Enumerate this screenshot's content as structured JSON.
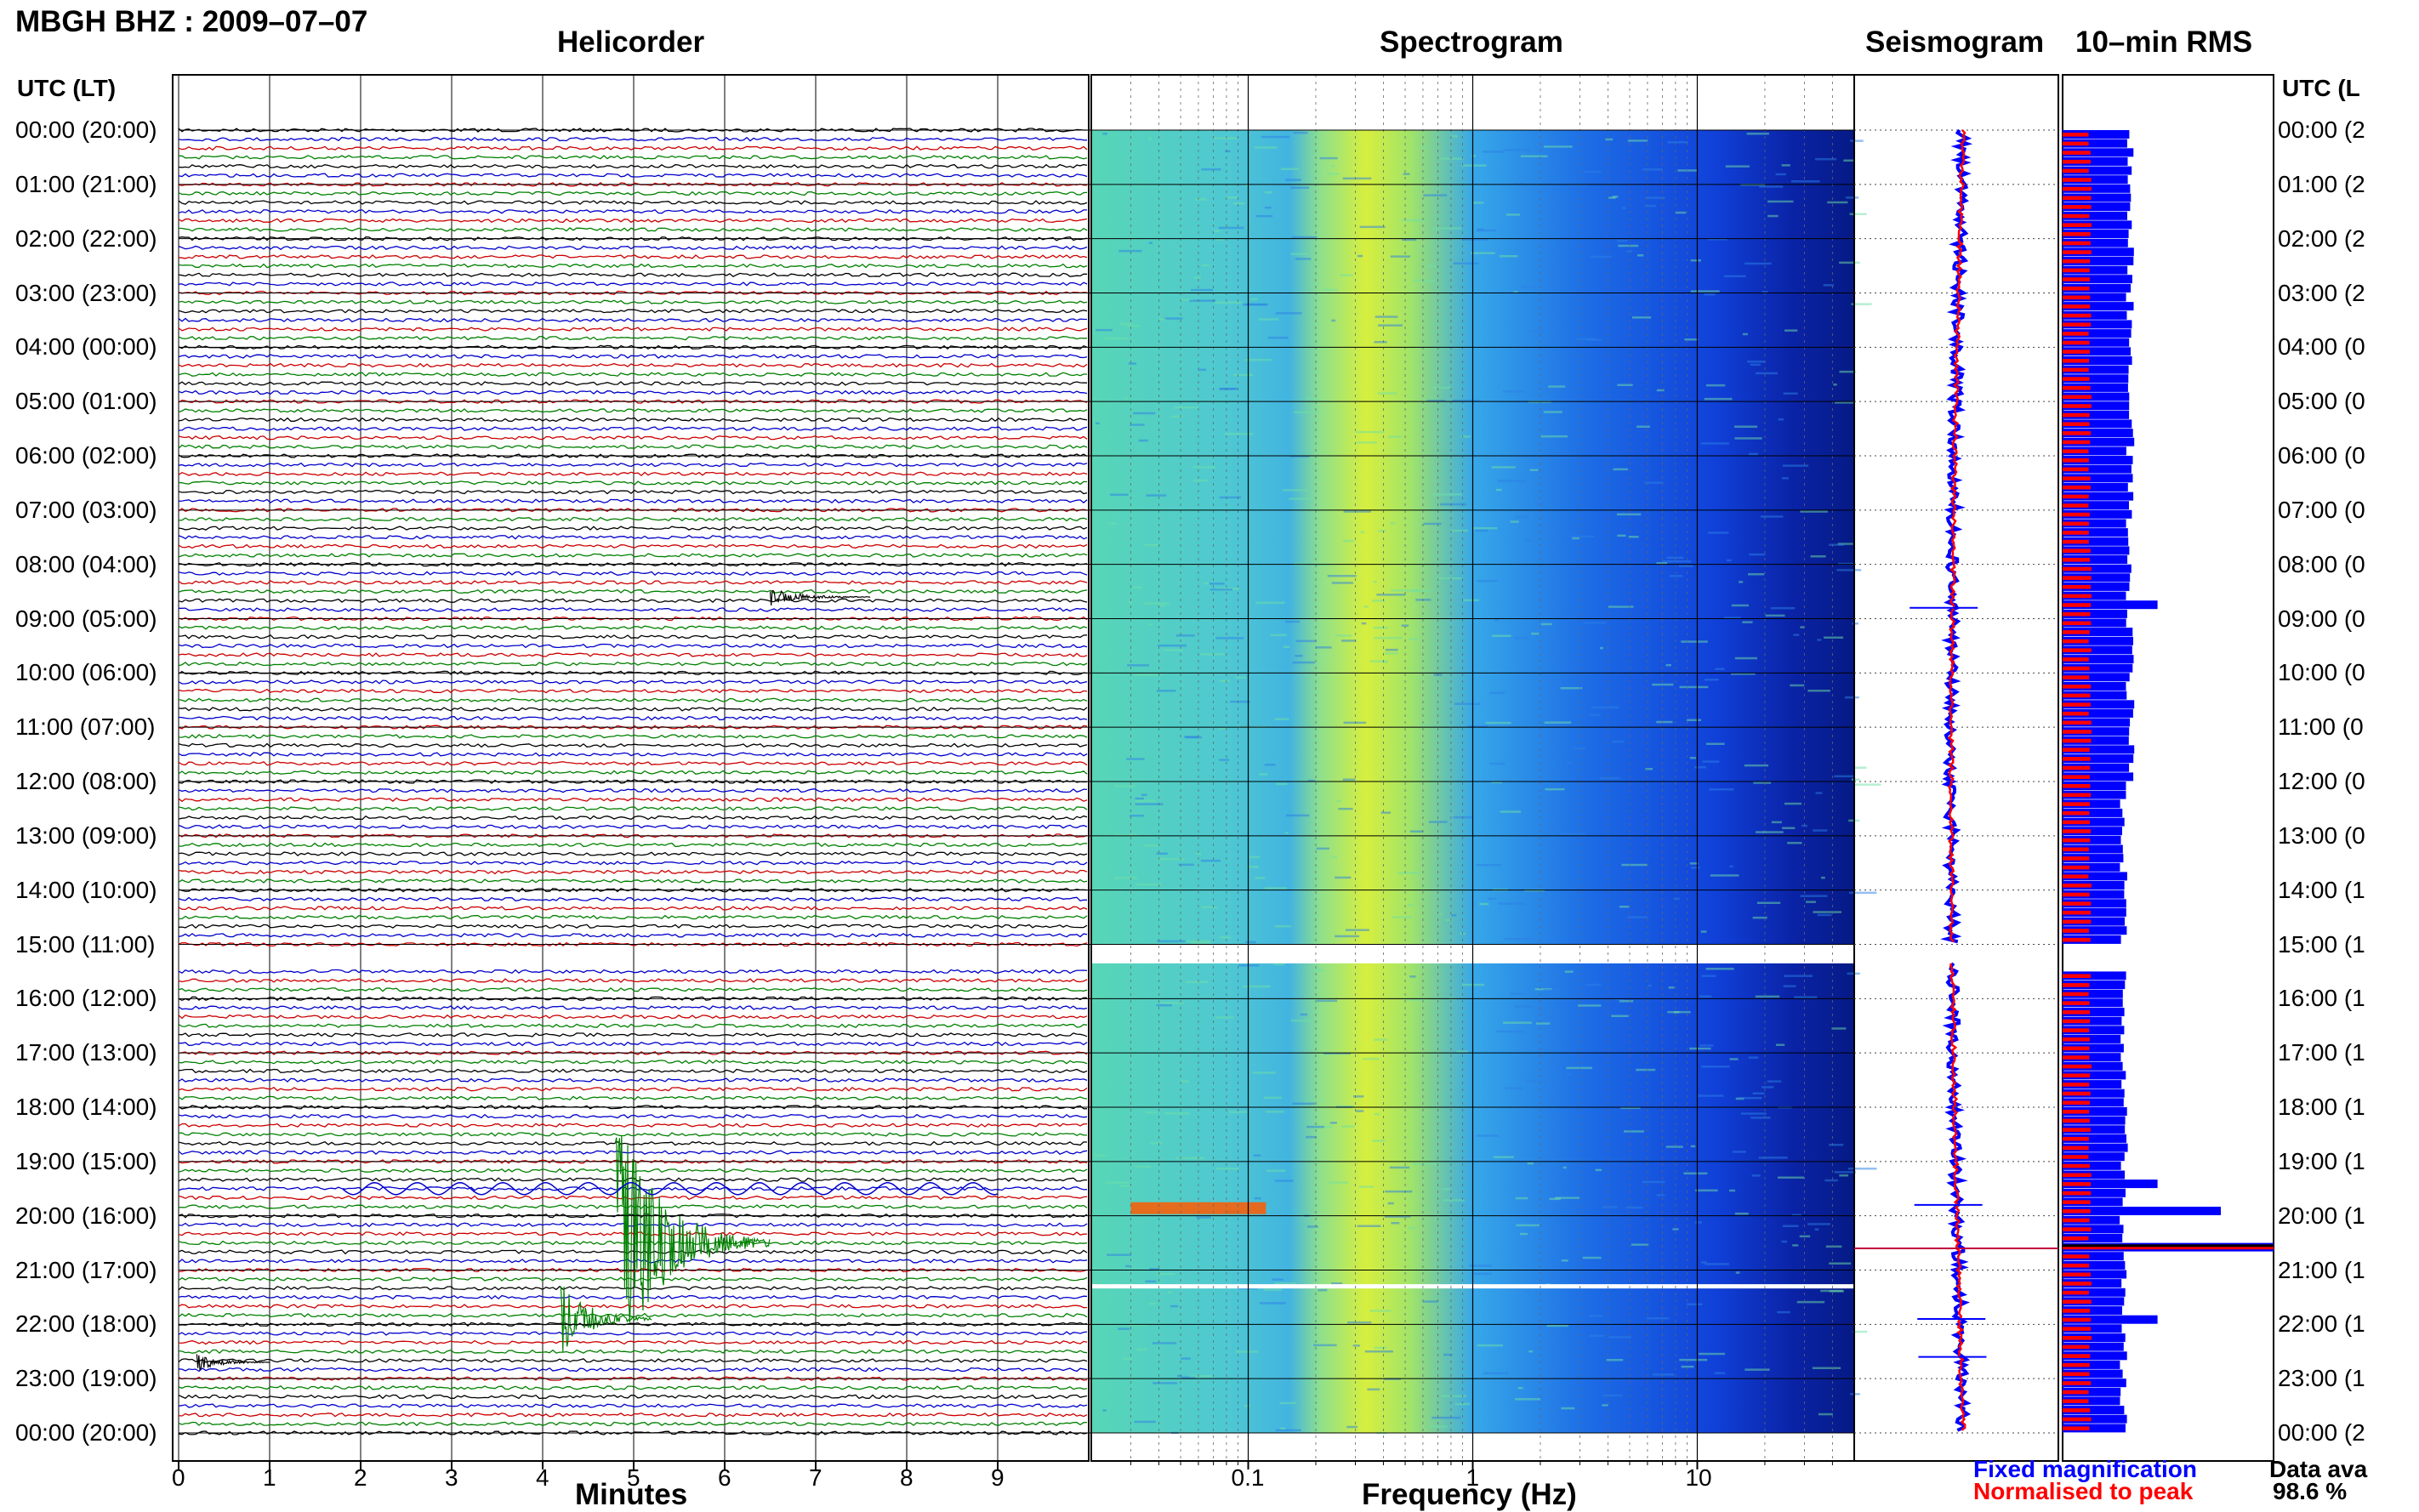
{
  "header": {
    "title": "MBGH BHZ : 2009–07–07",
    "panels": [
      "Helicorder",
      "Spectrogram",
      "Seismogram",
      "10–min RMS"
    ]
  },
  "left_axis_header": "UTC (LT)",
  "right_axis_header": "UTC (L",
  "row_labels": [
    "00:00 (20:00)",
    "01:00 (21:00)",
    "02:00 (22:00)",
    "03:00 (23:00)",
    "04:00 (00:00)",
    "05:00 (01:00)",
    "06:00 (02:00)",
    "07:00 (03:00)",
    "08:00 (04:00)",
    "09:00 (05:00)",
    "10:00 (06:00)",
    "11:00 (07:00)",
    "12:00 (08:00)",
    "13:00 (09:00)",
    "14:00 (10:00)",
    "15:00 (11:00)",
    "16:00 (12:00)",
    "17:00 (13:00)",
    "18:00 (14:00)",
    "19:00 (15:00)",
    "20:00 (16:00)",
    "21:00 (17:00)",
    "22:00 (18:00)",
    "23:00 (19:00)",
    "00:00 (20:00)"
  ],
  "right_row_labels": [
    "00:00 (2",
    "01:00 (2",
    "02:00 (2",
    "03:00 (2",
    "04:00 (0",
    "05:00 (0",
    "06:00 (0",
    "07:00 (0",
    "08:00 (0",
    "09:00 (0",
    "10:00 (0",
    "11:00 (0",
    "12:00 (0",
    "13:00 (0",
    "14:00 (1",
    "15:00 (1",
    "16:00 (1",
    "17:00 (1",
    "18:00 (1",
    "19:00 (1",
    "20:00 (1",
    "21:00 (1",
    "22:00 (1",
    "23:00 (1",
    "00:00 (2"
  ],
  "x_labels": {
    "helicorder": "Minutes",
    "spectrogram": "Frequency (Hz)"
  },
  "legend": {
    "fixed": "Fixed magnification",
    "normalised": "Normalised to peak"
  },
  "availability": {
    "label": "Data ava",
    "value": "98.6 %"
  },
  "colors": {
    "line_cycle": [
      "#000000",
      "#0000cc",
      "#cc0000",
      "#008000"
    ],
    "fixed": "#0000ff",
    "normalised": "#ff0000"
  },
  "chart_data": [
    {
      "type": "line",
      "title": "Helicorder",
      "xlabel": "Minutes",
      "x_ticks": [
        0,
        1,
        2,
        3,
        4,
        5,
        6,
        7,
        8,
        9
      ],
      "xlim": [
        0,
        10
      ],
      "rows_per_hour": 6,
      "hours": 24,
      "data_gap": {
        "start_hour": 15.0,
        "end_hour": 15.35
      },
      "events": [
        {
          "hour": 20.5,
          "minute_start": 4.8,
          "minute_end": 6.5,
          "amplitude": "large"
        },
        {
          "hour": 21.9,
          "minute_start": 4.2,
          "minute_end": 5.2,
          "amplitude": "medium"
        },
        {
          "hour": 8.6,
          "minute_start": 6.5,
          "minute_end": 7.6,
          "amplitude": "small"
        },
        {
          "hour": 22.7,
          "minute_start": 0.2,
          "minute_end": 1.0,
          "amplitude": "small"
        },
        {
          "hour": 19.5,
          "minute_start": 1.8,
          "minute_end": 9.0,
          "amplitude": "oscillation"
        }
      ]
    },
    {
      "type": "heatmap",
      "title": "Spectrogram",
      "xlabel": "Frequency (Hz)",
      "x_scale": "log",
      "xlim": [
        0.02,
        50
      ],
      "x_ticks": [
        0.1,
        1,
        10
      ],
      "peak_band_hz": [
        0.2,
        0.5
      ],
      "data_gap": {
        "start_hour": 15.0,
        "end_hour": 15.35
      },
      "gap_line_hour": 21.3
    },
    {
      "type": "line",
      "title": "Seismogram",
      "series": [
        {
          "name": "Fixed magnification",
          "color": "#0000ff"
        },
        {
          "name": "Normalised to peak",
          "color": "#ff0000"
        }
      ],
      "events_hour": [
        8.8,
        19.8,
        20.6,
        21.9,
        22.6
      ]
    },
    {
      "type": "bar",
      "title": "10–min RMS",
      "series": [
        {
          "name": "Fixed magnification",
          "color": "#0000ff"
        },
        {
          "name": "Normalised to peak",
          "color": "#ff0000"
        }
      ],
      "bins_per_hour": 6,
      "baseline_fixed": 0.32,
      "baseline_normalised": 0.13,
      "spikes": [
        {
          "hour": 8.7,
          "fixed": 0.45
        },
        {
          "hour": 19.4,
          "fixed": 0.45
        },
        {
          "hour": 19.8,
          "fixed": 0.75
        },
        {
          "hour": 20.5,
          "fixed": 1.0,
          "normalised": 1.0
        },
        {
          "hour": 21.9,
          "fixed": 0.45
        }
      ]
    }
  ]
}
